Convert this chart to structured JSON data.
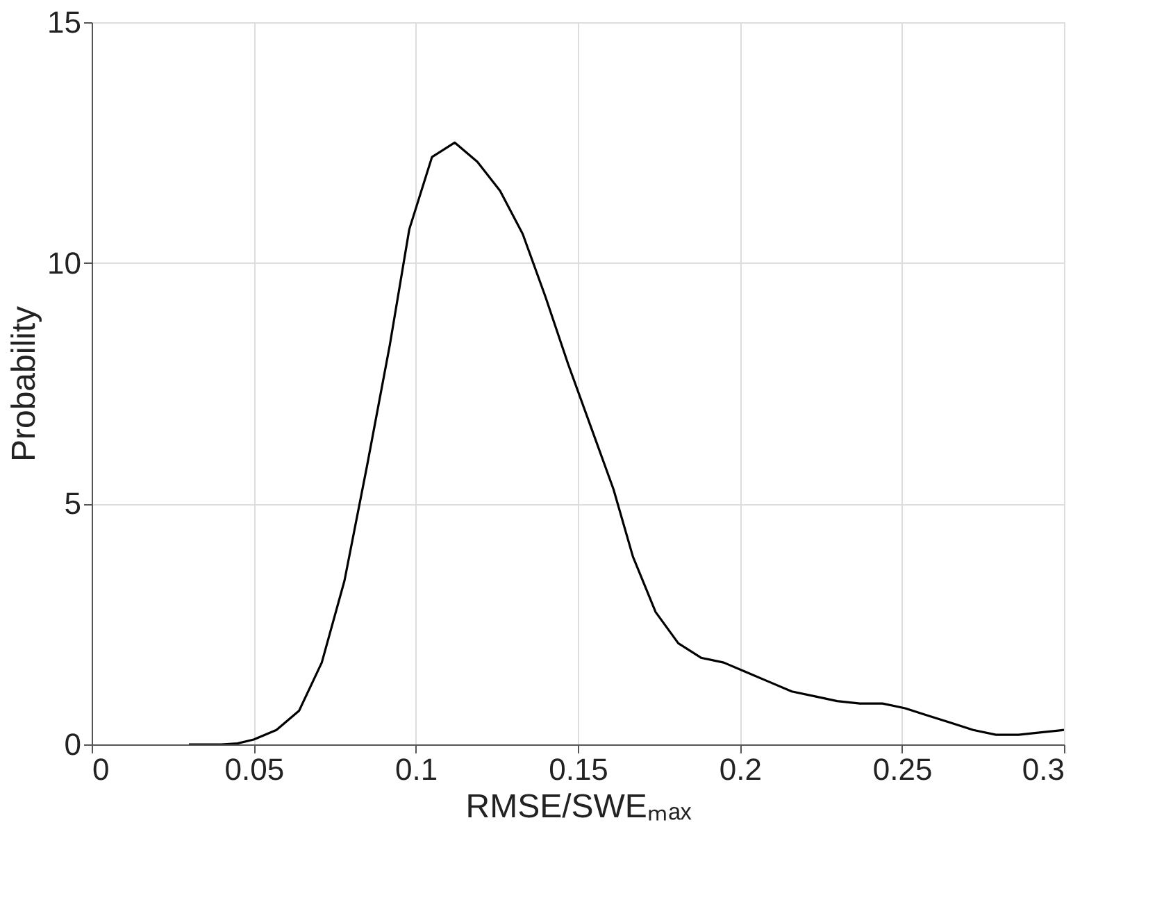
{
  "chart_data": {
    "type": "line",
    "xlabel": "RMSE/SWEₘₐₓ",
    "ylabel": "Probability",
    "x": [
      0.03,
      0.04,
      0.045,
      0.05,
      0.057,
      0.064,
      0.071,
      0.078,
      0.085,
      0.092,
      0.098,
      0.105,
      0.112,
      0.119,
      0.126,
      0.133,
      0.14,
      0.147,
      0.154,
      0.161,
      0.167,
      0.174,
      0.181,
      0.188,
      0.195,
      0.202,
      0.209,
      0.216,
      0.223,
      0.23,
      0.237,
      0.244,
      0.251,
      0.258,
      0.265,
      0.272,
      0.279,
      0.286,
      0.293,
      0.3
    ],
    "series": [
      {
        "color": "#000000",
        "values": [
          0,
          0,
          0.02,
          0.1,
          0.3,
          0.7,
          1.7,
          3.4,
          5.8,
          8.3,
          10.7,
          12.2,
          12.5,
          12.1,
          11.5,
          10.6,
          9.3,
          7.9,
          6.6,
          5.3,
          3.9,
          2.75,
          2.1,
          1.8,
          1.7,
          1.5,
          1.3,
          1.1,
          1.0,
          0.9,
          0.85,
          0.85,
          0.75,
          0.6,
          0.45,
          0.3,
          0.2,
          0.2,
          0.25,
          0.3
        ]
      }
    ],
    "xlim": [
      0,
      0.3
    ],
    "ylim": [
      0,
      15
    ],
    "xticks": [
      0,
      0.05,
      0.1,
      0.15,
      0.2,
      0.25,
      0.3
    ],
    "yticks": [
      0,
      5,
      10,
      15
    ],
    "grid": true,
    "marker": "none",
    "line_style": "solid"
  }
}
